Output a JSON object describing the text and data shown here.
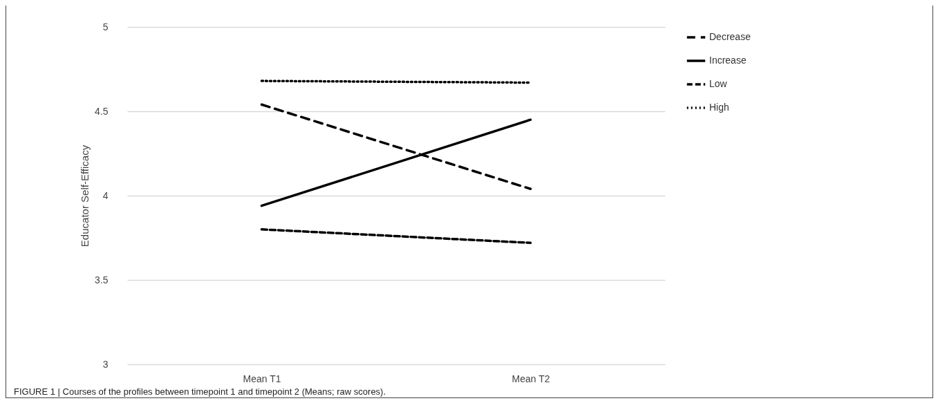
{
  "chart_data": {
    "type": "line",
    "ylabel": "Educator Self-Efficacy",
    "categories": [
      "Mean T1",
      "Mean T2"
    ],
    "series": [
      {
        "name": "Decrease",
        "color": "#000000",
        "line_style": "dashed",
        "values": [
          4.54,
          4.04
        ]
      },
      {
        "name": "Increase",
        "color": "#000000",
        "line_style": "solid",
        "values": [
          3.94,
          4.45
        ]
      },
      {
        "name": "Low",
        "color": "#000000",
        "line_style": "dashed",
        "values": [
          3.8,
          3.72
        ]
      },
      {
        "name": "High",
        "color": "#000000",
        "line_style": "dotted",
        "values": [
          4.68,
          4.67
        ]
      }
    ],
    "ylim": [
      3,
      5
    ],
    "yticks": [
      3,
      3.5,
      4,
      4.5,
      5
    ],
    "grid": "y",
    "legend": "right",
    "annotations": [
      "FIGURE 1 | Courses of the profiles between timepoint 1 and timepoint 2 (Means; raw scores)."
    ]
  }
}
